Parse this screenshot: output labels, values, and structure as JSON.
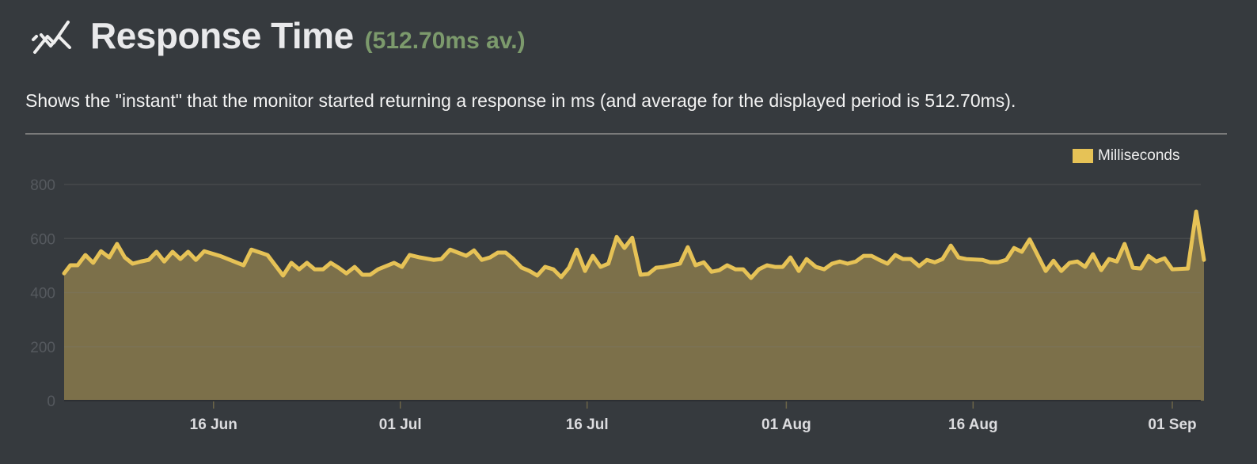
{
  "header": {
    "icon": "line-chart-icon",
    "title": "Response Time",
    "average_badge": "(512.70ms av.)"
  },
  "description": "Shows the \"instant\" that the monitor started returning a response in ms (and average for the displayed period is 512.70ms).",
  "colors": {
    "line": "#e6c256",
    "fill": "#7c704a",
    "background": "#363a3e",
    "accent_green": "#7c9a6c"
  },
  "chart_data": {
    "type": "area",
    "title": "",
    "xlabel": "",
    "ylabel": "",
    "ylim": [
      0,
      800
    ],
    "yticks": [
      0,
      200,
      400,
      600,
      800
    ],
    "xticks": [
      {
        "date": "06-16 00",
        "label": "16 Jun"
      },
      {
        "date": "07-01 00",
        "label": "01 Jul"
      },
      {
        "date": "07-16 00",
        "label": "16 Jul"
      },
      {
        "date": "08-01 00",
        "label": "01 Aug"
      },
      {
        "date": "08-16 00",
        "label": "16 Aug"
      },
      {
        "date": "09-01 00",
        "label": "01 Sep"
      }
    ],
    "xrange": [
      "06-04 00",
      "09-03 13"
    ],
    "grid": true,
    "legend_position": "top-right",
    "series": [
      {
        "name": "Milliseconds",
        "points": [
          [
            "06-04 00",
            471
          ],
          [
            "06-04 12",
            501
          ],
          [
            "06-05 02",
            501
          ],
          [
            "06-05 17",
            539
          ],
          [
            "06-06 08",
            510
          ],
          [
            "06-06 23",
            553
          ],
          [
            "06-07 15",
            530
          ],
          [
            "06-08 06",
            580
          ],
          [
            "06-08 21",
            530
          ],
          [
            "06-09 12",
            507
          ],
          [
            "06-10 04",
            515
          ],
          [
            "06-10 19",
            521
          ],
          [
            "06-11 10",
            551
          ],
          [
            "06-12 01",
            515
          ],
          [
            "06-12 17",
            551
          ],
          [
            "06-13 08",
            524
          ],
          [
            "06-13 23",
            551
          ],
          [
            "06-14 14",
            521
          ],
          [
            "06-15 06",
            553
          ],
          [
            "06-16 12",
            536
          ],
          [
            "06-18 10",
            501
          ],
          [
            "06-19 01",
            559
          ],
          [
            "06-20 08",
            539
          ],
          [
            "06-20 23",
            501
          ],
          [
            "06-21 14",
            463
          ],
          [
            "06-22 06",
            510
          ],
          [
            "06-22 21",
            486
          ],
          [
            "06-23 12",
            510
          ],
          [
            "06-24 03",
            486
          ],
          [
            "06-24 19",
            486
          ],
          [
            "06-25 10",
            510
          ],
          [
            "06-26 01",
            492
          ],
          [
            "06-26 16",
            471
          ],
          [
            "06-27 08",
            495
          ],
          [
            "06-27 23",
            466
          ],
          [
            "06-28 14",
            466
          ],
          [
            "06-29 05",
            486
          ],
          [
            "06-30 12",
            510
          ],
          [
            "07-01 03",
            495
          ],
          [
            "07-01 18",
            539
          ],
          [
            "07-02 14",
            530
          ],
          [
            "07-03 16",
            521
          ],
          [
            "07-04 07",
            524
          ],
          [
            "07-05 00",
            559
          ],
          [
            "07-06 07",
            536
          ],
          [
            "07-06 22",
            556
          ],
          [
            "07-07 13",
            521
          ],
          [
            "07-08 05",
            530
          ],
          [
            "07-08 20",
            548
          ],
          [
            "07-09 11",
            548
          ],
          [
            "07-10 02",
            524
          ],
          [
            "07-10 18",
            492
          ],
          [
            "07-11 09",
            480
          ],
          [
            "07-12 00",
            463
          ],
          [
            "07-12 15",
            495
          ],
          [
            "07-13 07",
            486
          ],
          [
            "07-13 22",
            457
          ],
          [
            "07-14 13",
            492
          ],
          [
            "07-15 04",
            559
          ],
          [
            "07-15 20",
            480
          ],
          [
            "07-16 11",
            536
          ],
          [
            "07-17 02",
            495
          ],
          [
            "07-17 17",
            507
          ],
          [
            "07-18 09",
            606
          ],
          [
            "07-19 00",
            565
          ],
          [
            "07-19 15",
            603
          ],
          [
            "07-20 07",
            466
          ],
          [
            "07-20 22",
            469
          ],
          [
            "07-21 13",
            492
          ],
          [
            "07-22 04",
            495
          ],
          [
            "07-23 11",
            507
          ],
          [
            "07-24 02",
            568
          ],
          [
            "07-24 17",
            501
          ],
          [
            "07-25 09",
            512
          ],
          [
            "07-26 00",
            477
          ],
          [
            "07-26 15",
            483
          ],
          [
            "07-27 06",
            501
          ],
          [
            "07-27 22",
            486
          ],
          [
            "07-28 13",
            486
          ],
          [
            "07-29 04",
            454
          ],
          [
            "07-29 19",
            486
          ],
          [
            "07-30 11",
            501
          ],
          [
            "07-31 02",
            495
          ],
          [
            "07-31 17",
            495
          ],
          [
            "08-01 08",
            530
          ],
          [
            "08-02 00",
            480
          ],
          [
            "08-02 15",
            524
          ],
          [
            "08-03 09",
            495
          ],
          [
            "08-04 01",
            486
          ],
          [
            "08-04 16",
            507
          ],
          [
            "08-05 07",
            515
          ],
          [
            "08-05 22",
            507
          ],
          [
            "08-06 14",
            515
          ],
          [
            "08-07 05",
            536
          ],
          [
            "08-07 20",
            536
          ],
          [
            "08-08 11",
            521
          ],
          [
            "08-09 03",
            507
          ],
          [
            "08-09 18",
            539
          ],
          [
            "08-10 09",
            524
          ],
          [
            "08-11 00",
            524
          ],
          [
            "08-11 16",
            498
          ],
          [
            "08-12 07",
            521
          ],
          [
            "08-12 22",
            512
          ],
          [
            "08-13 13",
            524
          ],
          [
            "08-14 05",
            574
          ],
          [
            "08-14 20",
            530
          ],
          [
            "08-15 11",
            524
          ],
          [
            "08-16 18",
            521
          ],
          [
            "08-17 09",
            512
          ],
          [
            "08-18 00",
            512
          ],
          [
            "08-18 16",
            521
          ],
          [
            "08-19 07",
            565
          ],
          [
            "08-19 22",
            551
          ],
          [
            "08-20 13",
            597
          ],
          [
            "08-21 20",
            480
          ],
          [
            "08-22 11",
            518
          ],
          [
            "08-23 02",
            480
          ],
          [
            "08-23 18",
            510
          ],
          [
            "08-24 09",
            515
          ],
          [
            "08-25 00",
            495
          ],
          [
            "08-25 15",
            542
          ],
          [
            "08-26 07",
            483
          ],
          [
            "08-26 22",
            524
          ],
          [
            "08-27 13",
            515
          ],
          [
            "08-28 04",
            580
          ],
          [
            "08-28 20",
            492
          ],
          [
            "08-29 11",
            489
          ],
          [
            "08-30 02",
            536
          ],
          [
            "08-30 17",
            515
          ],
          [
            "08-31 09",
            527
          ],
          [
            "09-01 00",
            486
          ],
          [
            "09-02 06",
            489
          ],
          [
            "09-02 22",
            700
          ],
          [
            "09-03 13",
            521
          ]
        ]
      }
    ]
  }
}
